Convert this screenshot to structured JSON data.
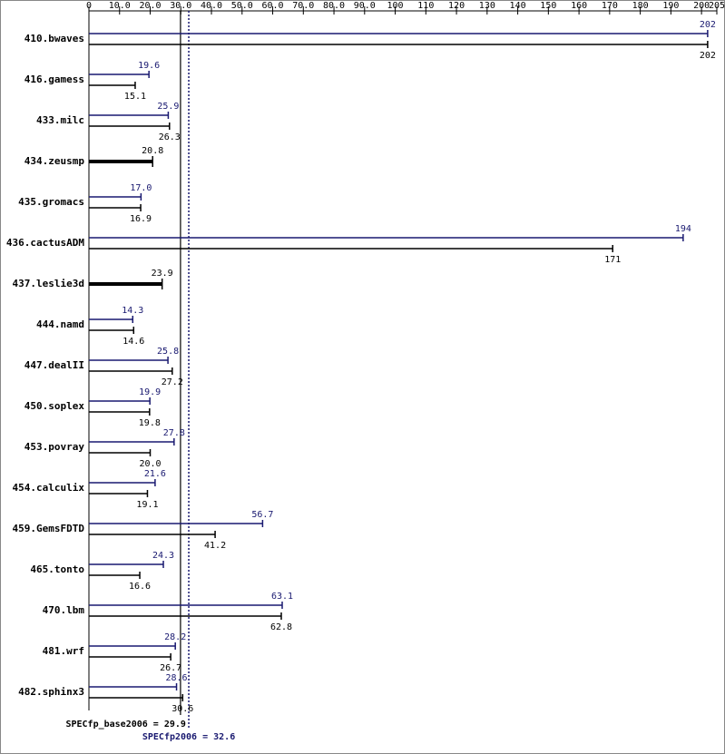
{
  "chart_data": {
    "type": "bar",
    "orientation": "horizontal",
    "categories": [
      "410.bwaves",
      "416.gamess",
      "433.milc",
      "434.zeusmp",
      "435.gromacs",
      "436.cactusADM",
      "437.leslie3d",
      "444.namd",
      "447.dealII",
      "450.soplex",
      "453.povray",
      "454.calculix",
      "459.GemsFDTD",
      "465.tonto",
      "470.lbm",
      "481.wrf",
      "482.sphinx3"
    ],
    "series": [
      {
        "color": "#191970",
        "values": [
          202,
          19.6,
          25.9,
          null,
          17.0,
          194,
          null,
          14.3,
          25.8,
          19.9,
          27.8,
          21.6,
          56.7,
          24.3,
          63.1,
          28.2,
          28.6
        ],
        "value_labels": [
          "202",
          "19.6",
          "25.9",
          null,
          "17.0",
          "194",
          null,
          "14.3",
          "25.8",
          "19.9",
          "27.8",
          "21.6",
          "56.7",
          "24.3",
          "63.1",
          "28.2",
          "28.6"
        ]
      },
      {
        "color": "#000000",
        "values": [
          202,
          15.1,
          26.3,
          20.8,
          16.9,
          171,
          23.9,
          14.6,
          27.2,
          19.8,
          20.0,
          19.1,
          41.2,
          16.6,
          62.8,
          26.7,
          30.6
        ],
        "value_labels": [
          "202",
          "15.1",
          "26.3",
          "20.8",
          "16.9",
          "171",
          "23.9",
          "14.6",
          "27.2",
          "19.8",
          "20.0",
          "19.1",
          "41.2",
          "16.6",
          "62.8",
          "26.7",
          "30.6"
        ]
      }
    ],
    "xlim": [
      0,
      205
    ],
    "xticks": [
      0,
      {
        "value": 10,
        "label": "10.0"
      },
      {
        "value": 20,
        "label": "20.0"
      },
      {
        "value": 30,
        "label": "30.0"
      },
      {
        "value": 40,
        "label": "40.0"
      },
      {
        "value": 50,
        "label": "50.0"
      },
      {
        "value": 60,
        "label": "60.0"
      },
      {
        "value": 70,
        "label": "70.0"
      },
      {
        "value": 80,
        "label": "80.0"
      },
      {
        "value": 90,
        "label": "90.0"
      },
      100,
      110,
      120,
      130,
      140,
      150,
      160,
      170,
      180,
      190,
      200,
      205
    ],
    "reference_lines": [
      {
        "label": "SPECfp_base2006 = 29.9",
        "value": 29.9,
        "color": "#000000",
        "style": "solid"
      },
      {
        "label": "SPECfp2006 = 32.6",
        "value": 32.6,
        "color": "#191970",
        "style": "dotted"
      }
    ]
  }
}
